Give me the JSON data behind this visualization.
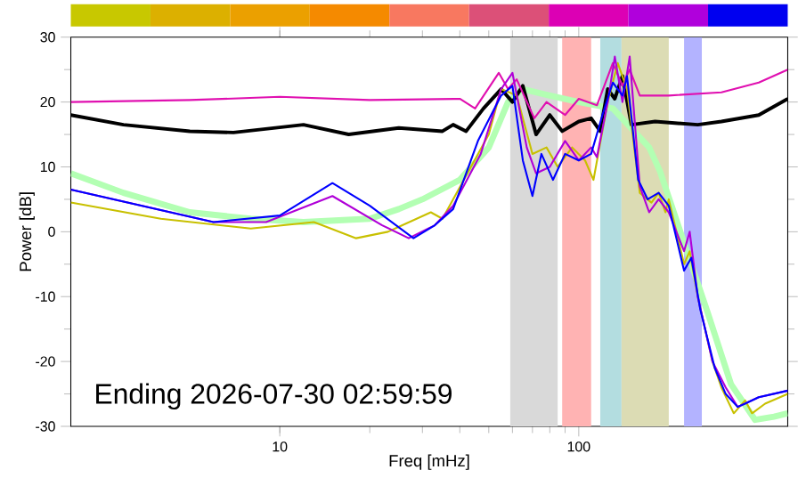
{
  "chart_data": {
    "type": "line",
    "xlabel": "Freq [mHz]",
    "ylabel": "Power [dB]",
    "log": "x",
    "xlim": [
      2,
      500
    ],
    "ylim": [
      -30,
      30
    ],
    "xticks": [
      10,
      100
    ],
    "yticks": [
      -30,
      -20,
      -10,
      0,
      10,
      20,
      30
    ],
    "grid": false,
    "marker": "none",
    "line_style": "solid",
    "annotations": [
      "Ending 2026-07-30 02:59:59"
    ],
    "bands": [
      {
        "axis": "x",
        "from": 59,
        "to": 85,
        "color": "#d9d9d9"
      },
      {
        "axis": "x",
        "from": 88,
        "to": 110,
        "color": "#ffb3b3"
      },
      {
        "axis": "x",
        "from": 118,
        "to": 139,
        "color": "#b3dde0"
      },
      {
        "axis": "x",
        "from": 139,
        "to": 200,
        "color": "#dcdcb4"
      },
      {
        "axis": "x",
        "from": 225,
        "to": 258,
        "color": "#b3b3ff"
      }
    ],
    "series": [
      {
        "color": "#b3ffb3",
        "x": [
          2,
          3,
          5,
          8,
          12,
          20,
          25,
          30,
          40,
          50,
          58,
          65,
          80,
          100,
          130,
          172,
          187,
          230,
          270,
          323,
          389,
          450,
          500
        ],
        "values": [
          9,
          6,
          3,
          2,
          1.5,
          2,
          3.5,
          5,
          8,
          13,
          20,
          22,
          21,
          20,
          19,
          13,
          9.3,
          -3,
          -12.5,
          -23.5,
          -29,
          -28.5,
          -28
        ]
      },
      {
        "color": "#000000",
        "x": [
          2,
          3,
          5,
          7,
          12,
          17,
          25,
          35,
          38,
          42,
          48,
          55,
          60,
          65,
          72,
          80,
          88,
          100,
          110,
          118,
          125,
          132,
          140,
          150,
          180,
          250,
          300,
          400,
          500
        ],
        "values": [
          18,
          16.5,
          15.5,
          15.3,
          16.5,
          15,
          16,
          15.5,
          16.5,
          15.5,
          19,
          22,
          20,
          22.5,
          15,
          18,
          15.5,
          17,
          17.5,
          15.5,
          22,
          20.5,
          24,
          16.5,
          17,
          16.5,
          17,
          18,
          20.5
        ]
      },
      {
        "color": "#e010b0",
        "x": [
          2,
          5,
          10,
          20,
          40,
          45,
          54,
          58,
          62,
          71,
          78,
          90,
          100,
          115,
          130,
          140,
          148,
          160,
          200,
          300,
          400,
          500
        ],
        "values": [
          20,
          20.3,
          20.8,
          20.3,
          20.5,
          19,
          24.5,
          22,
          23.5,
          17.5,
          20,
          18,
          20.5,
          19.5,
          26,
          22.5,
          25,
          21,
          21,
          21.5,
          23,
          25
        ]
      },
      {
        "color": "#c8c000",
        "x": [
          2,
          4,
          8,
          13,
          18,
          23,
          32,
          35,
          38,
          50,
          55,
          62,
          70,
          78,
          85,
          95,
          105,
          112,
          125,
          135,
          145,
          160,
          175,
          185,
          195,
          200,
          225,
          235,
          250,
          280,
          300,
          330,
          360,
          380,
          420,
          500
        ],
        "values": [
          4.5,
          2,
          0.5,
          1.5,
          -1,
          0,
          3,
          2,
          5,
          15,
          22,
          21,
          12,
          13,
          10,
          13,
          11,
          8,
          20,
          26,
          22,
          6,
          4.5,
          6,
          3,
          5,
          -5,
          -3,
          -10,
          -20,
          -24,
          -28,
          -26,
          -28,
          -26.5,
          -25
        ]
      },
      {
        "color": "#b000d8",
        "x": [
          2,
          6,
          9,
          15,
          22,
          27,
          33,
          38,
          47,
          55,
          60,
          67,
          72,
          80,
          90,
          100,
          110,
          115,
          125,
          132,
          140,
          148,
          160,
          172,
          185,
          200,
          225,
          235,
          250,
          280,
          310,
          340,
          400,
          500
        ],
        "values": [
          6.5,
          1.5,
          1.5,
          5.5,
          1,
          -1,
          1,
          4,
          12,
          22,
          24.5,
          13,
          9,
          10,
          14,
          11,
          13,
          11.5,
          20,
          27,
          20,
          27,
          7,
          3,
          5,
          3,
          -3,
          0,
          -10,
          -20,
          -24,
          -27,
          -25.5,
          -24.5
        ]
      },
      {
        "color": "#0000ff",
        "x": [
          2,
          6,
          10,
          15,
          20,
          28,
          33,
          38,
          46,
          55,
          60,
          65,
          70,
          75,
          82,
          90,
          100,
          110,
          120,
          130,
          140,
          145,
          158,
          170,
          185,
          200,
          225,
          238,
          255,
          285,
          310,
          340,
          360,
          400,
          500
        ],
        "values": [
          6.5,
          1.5,
          2.5,
          7.5,
          4,
          -1,
          1,
          3.5,
          14,
          21,
          22.5,
          11,
          5.5,
          12,
          8,
          12,
          11,
          12,
          18,
          23,
          21,
          24,
          8,
          5,
          6,
          4,
          -6,
          -4,
          -12,
          -21,
          -25,
          -27,
          -26.5,
          -25.5,
          -24.5
        ]
      }
    ]
  }
}
